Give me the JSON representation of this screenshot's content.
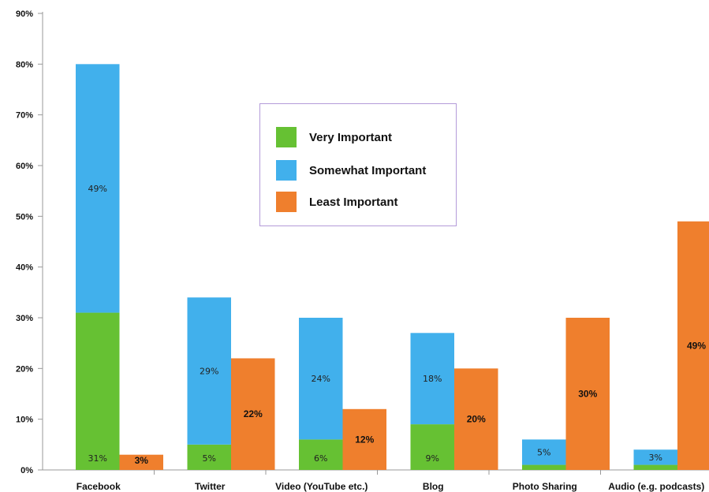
{
  "chart_data": {
    "type": "bar",
    "categories": [
      "Facebook",
      "Twitter",
      "Video (YouTube etc.)",
      "Blog",
      "Photo Sharing",
      "Audio (e.g. podcasts)"
    ],
    "series": [
      {
        "name": "Very Important",
        "stack": "importance",
        "color": "#66c133",
        "values": [
          31,
          5,
          6,
          9,
          1,
          1
        ],
        "labels": [
          "31%",
          "5%",
          "6%",
          "9%",
          "",
          ""
        ]
      },
      {
        "name": "Somewhat Important",
        "stack": "importance",
        "color": "#41b0ec",
        "values": [
          49,
          29,
          24,
          18,
          5,
          3
        ],
        "labels": [
          "49%",
          "29%",
          "24%",
          "18%",
          "5%",
          "3%"
        ]
      },
      {
        "name": "Least Important",
        "stack": "least",
        "color": "#ef7f2d",
        "values": [
          3,
          22,
          12,
          20,
          30,
          49
        ],
        "labels": [
          "3%",
          "22%",
          "12%",
          "20%",
          "30%",
          "49%"
        ]
      }
    ],
    "y_ticks": [
      "0%",
      "10%",
      "20%",
      "30%",
      "40%",
      "50%",
      "60%",
      "70%",
      "80%",
      "90%"
    ],
    "ylim": [
      0,
      90
    ],
    "grid": false,
    "legend_position": "center"
  },
  "legend": {
    "items": [
      {
        "label": "Very Important",
        "color": "#66c133"
      },
      {
        "label": "Somewhat Important",
        "color": "#41b0ec"
      },
      {
        "label": "Least Important",
        "color": "#ef7f2d"
      }
    ]
  }
}
